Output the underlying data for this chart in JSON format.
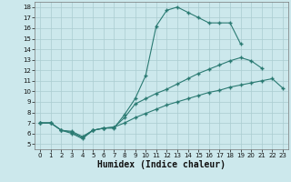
{
  "bg_color": "#cce8ec",
  "line_color": "#2a7a72",
  "grid_color": "#aaccd0",
  "xlabel": "Humidex (Indice chaleur)",
  "xlim": [
    -0.5,
    23.5
  ],
  "ylim": [
    4.5,
    18.5
  ],
  "xticks": [
    0,
    1,
    2,
    3,
    4,
    5,
    6,
    7,
    8,
    9,
    10,
    11,
    12,
    13,
    14,
    15,
    16,
    17,
    18,
    19,
    20,
    21,
    22,
    23
  ],
  "yticks": [
    5,
    6,
    7,
    8,
    9,
    10,
    11,
    12,
    13,
    14,
    15,
    16,
    17,
    18
  ],
  "curve1_x": [
    0,
    1,
    2,
    3,
    4,
    5,
    6,
    7,
    8,
    9,
    10,
    11,
    12,
    13,
    14,
    15,
    16,
    17,
    18,
    19
  ],
  "curve1_y": [
    7.0,
    7.0,
    6.3,
    6.0,
    5.5,
    6.3,
    6.5,
    6.5,
    7.8,
    9.3,
    11.5,
    16.2,
    17.7,
    18.0,
    17.5,
    17.0,
    16.5,
    16.5,
    16.5,
    14.5
  ],
  "curve2_x": [
    0,
    1,
    2,
    3,
    4,
    5,
    6,
    7,
    8,
    9,
    10,
    11,
    12,
    13,
    14,
    15,
    16,
    17,
    18,
    19,
    20,
    21
  ],
  "curve2_y": [
    7.0,
    7.0,
    6.3,
    6.2,
    5.7,
    6.3,
    6.5,
    6.6,
    7.5,
    8.8,
    9.3,
    9.8,
    10.2,
    10.7,
    11.2,
    11.7,
    12.1,
    12.5,
    12.9,
    13.2,
    12.9,
    12.2
  ],
  "curve3_x": [
    0,
    1,
    2,
    3,
    4,
    5,
    6,
    7,
    8,
    9,
    10,
    11,
    12,
    13,
    14,
    15,
    16,
    17,
    18,
    19,
    20,
    21,
    22,
    23
  ],
  "curve3_y": [
    7.0,
    7.0,
    6.3,
    6.1,
    5.6,
    6.3,
    6.5,
    6.6,
    7.0,
    7.5,
    7.9,
    8.3,
    8.7,
    9.0,
    9.3,
    9.6,
    9.9,
    10.1,
    10.4,
    10.6,
    10.8,
    11.0,
    11.2,
    10.3
  ]
}
